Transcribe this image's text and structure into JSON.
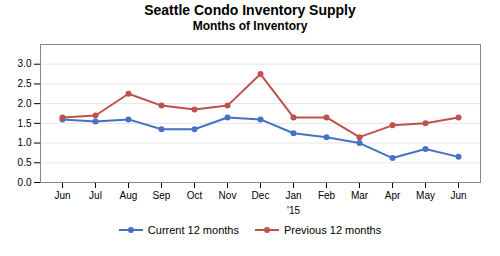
{
  "chart_data": {
    "type": "line",
    "title": "Seattle Condo Inventory Supply",
    "subtitle": "Months of Inventory",
    "categories": [
      "Jun",
      "Jul",
      "Aug",
      "Sep",
      "Oct",
      "Nov",
      "Dec",
      "Jan",
      "Feb",
      "Mar",
      "Apr",
      "May",
      "Jun"
    ],
    "series": [
      {
        "name": "Current 12 months",
        "color": "#4472C4",
        "values": [
          1.6,
          1.55,
          1.6,
          1.35,
          1.35,
          1.65,
          1.6,
          1.25,
          1.15,
          1.0,
          0.62,
          0.85,
          0.65
        ]
      },
      {
        "name": "Previous 12 months",
        "color": "#C0504D",
        "values": [
          1.65,
          1.7,
          2.25,
          1.95,
          1.85,
          1.95,
          2.75,
          1.65,
          1.65,
          1.15,
          1.45,
          1.5,
          1.65
        ]
      }
    ],
    "ylim": [
      0.0,
      3.5
    ],
    "yticks": [
      {
        "value": 0.0,
        "label": "0.0"
      },
      0.5,
      {
        "value": 1.0,
        "label": "1.0"
      },
      1.5,
      {
        "value": 2.0,
        "label": "2.0"
      },
      2.5,
      {
        "value": 3.0,
        "label": "3.0"
      }
    ],
    "annotations": [
      {
        "text": "'15",
        "category": "Jan"
      }
    ],
    "marker": "circle",
    "grid": true,
    "legend": "bottom"
  }
}
